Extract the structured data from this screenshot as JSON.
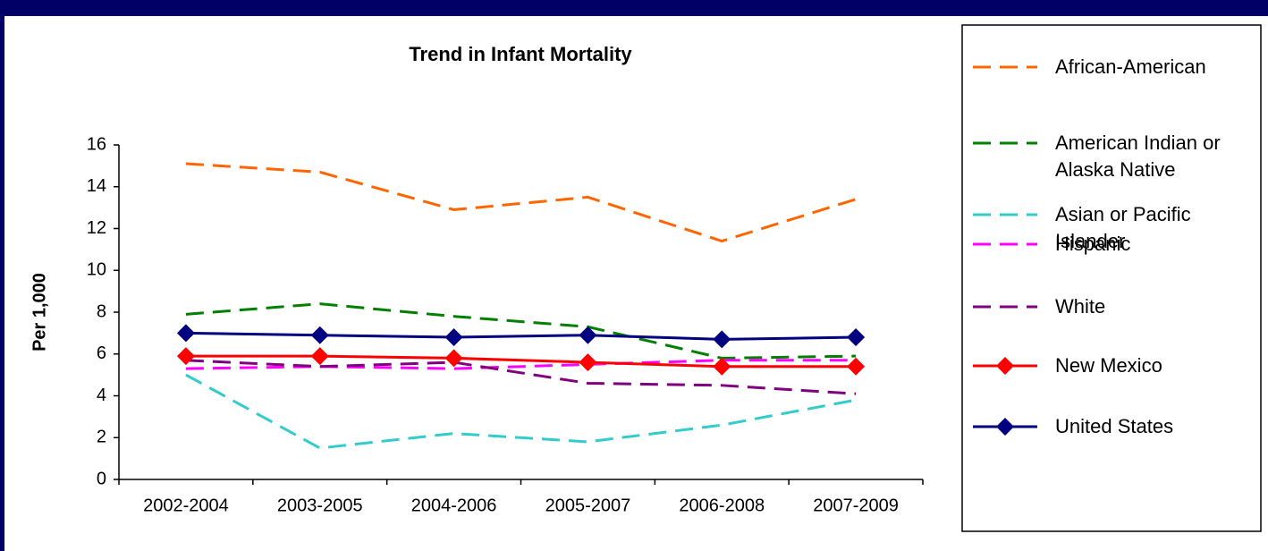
{
  "chart_data": {
    "type": "line",
    "title": "Trend in Infant Mortality",
    "ylabel": "Per 1,000",
    "categories": [
      "2002-2004",
      "2003-2005",
      "2004-2006",
      "2005-2007",
      "2006-2008",
      "2007-2009"
    ],
    "ylim": [
      0,
      16
    ],
    "yticks": [
      0,
      2,
      4,
      6,
      8,
      10,
      12,
      14,
      16
    ],
    "legend": "right",
    "series": [
      {
        "name": "African-American",
        "color": "#ff6600",
        "style": "dashed",
        "values": [
          15.1,
          14.7,
          12.9,
          13.5,
          11.4,
          13.4
        ]
      },
      {
        "name": "American Indian or Alaska Native",
        "color": "#008000",
        "style": "dashed",
        "values": [
          7.9,
          8.4,
          7.8,
          7.3,
          5.8,
          5.9
        ]
      },
      {
        "name": "Asian or Pacific Islander",
        "color": "#33cccc",
        "style": "dashed",
        "values": [
          5.0,
          1.5,
          2.2,
          1.8,
          2.6,
          3.8
        ]
      },
      {
        "name": "Hispanic",
        "color": "#ff00ff",
        "style": "dashed",
        "values": [
          5.3,
          5.4,
          5.3,
          5.5,
          5.7,
          5.7
        ]
      },
      {
        "name": "White",
        "color": "#800080",
        "style": "dashed",
        "values": [
          5.7,
          5.4,
          5.6,
          4.6,
          4.5,
          4.1
        ]
      },
      {
        "name": "New Mexico",
        "color": "#ff0000",
        "style": "solid",
        "marker": "diamond",
        "values": [
          5.9,
          5.9,
          5.8,
          5.6,
          5.4,
          5.4
        ]
      },
      {
        "name": "United States",
        "color": "#000080",
        "style": "solid",
        "marker": "diamond",
        "values": [
          7.0,
          6.9,
          6.8,
          6.9,
          6.7,
          6.8
        ]
      }
    ]
  }
}
